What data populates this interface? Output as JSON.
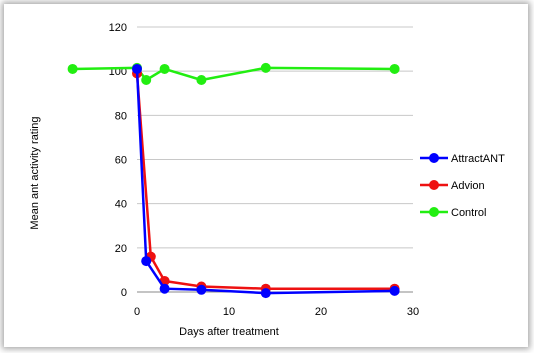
{
  "chart_data": {
    "type": "line",
    "title": "",
    "xlabel": "Days after treatment",
    "ylabel": "Mean ant activity rating",
    "xlim": [
      0,
      30
    ],
    "ylim": [
      0,
      120
    ],
    "x_ticks": [
      "0",
      "10",
      "20",
      "30"
    ],
    "y_ticks": [
      "0",
      "20",
      "40",
      "60",
      "80",
      "100",
      "120"
    ],
    "grid": "horizontal",
    "legend_position": "right",
    "series": [
      {
        "name": "AttractANT",
        "color": "#0000ff",
        "x": [
          0,
          1,
          3,
          7,
          14,
          28
        ],
        "y": [
          101,
          14,
          1.5,
          1,
          -0.5,
          0.5
        ]
      },
      {
        "name": "Advion",
        "color": "#ee1111",
        "x": [
          0,
          1.5,
          3,
          7,
          14,
          28
        ],
        "y": [
          99,
          16,
          5,
          2.5,
          1.5,
          1.5
        ]
      },
      {
        "name": "Control",
        "color": "#22ee11",
        "x": [
          -7,
          0,
          1,
          3,
          7,
          14,
          28
        ],
        "y": [
          101,
          101.5,
          96,
          101,
          96,
          101.5,
          101
        ]
      }
    ]
  }
}
